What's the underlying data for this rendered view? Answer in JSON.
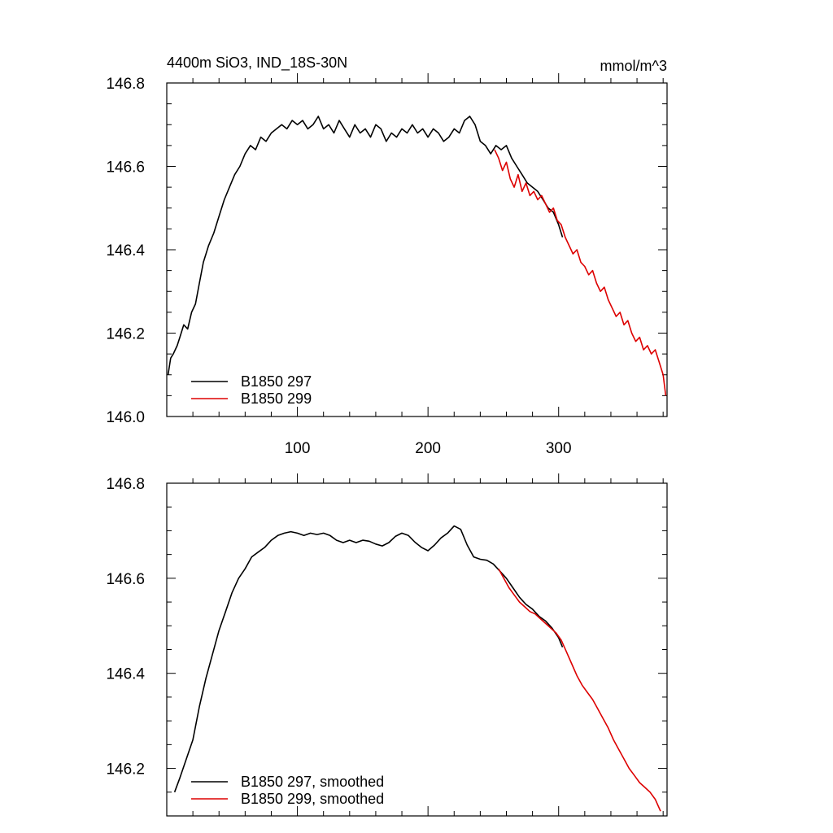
{
  "figure": {
    "title_left": "4400m SiO3, IND_18S-30N",
    "title_right": "mmol/m^3"
  },
  "chart_data": [
    {
      "type": "line",
      "panel": "top",
      "xlabel": "",
      "ylabel": "",
      "xlim": [
        0,
        383
      ],
      "ylim": [
        146.0,
        146.8
      ],
      "xticks": [
        100,
        200,
        300
      ],
      "xtick_labels": [
        "100",
        "200",
        "300"
      ],
      "yticks": [
        146.0,
        146.2,
        146.4,
        146.6,
        146.8
      ],
      "ytick_labels": [
        "146.0",
        "146.2",
        "146.4",
        "146.6",
        "146.8"
      ],
      "legend_position": "bottom-left",
      "series": [
        {
          "name": "B1850 297",
          "color": "#000000",
          "x": [
            1,
            3,
            5,
            8,
            10,
            13,
            16,
            19,
            22,
            25,
            28,
            32,
            36,
            40,
            44,
            48,
            52,
            56,
            60,
            64,
            68,
            72,
            76,
            80,
            84,
            88,
            92,
            96,
            100,
            104,
            108,
            112,
            116,
            120,
            124,
            128,
            132,
            136,
            140,
            144,
            148,
            152,
            156,
            160,
            164,
            168,
            172,
            176,
            180,
            184,
            188,
            192,
            196,
            200,
            204,
            208,
            212,
            216,
            220,
            224,
            228,
            232,
            236,
            240,
            244,
            248,
            252,
            256,
            260,
            264,
            268,
            272,
            276,
            280,
            284,
            288,
            292,
            296,
            300,
            303
          ],
          "values": [
            146.1,
            146.14,
            146.15,
            146.17,
            146.19,
            146.22,
            146.21,
            146.25,
            146.27,
            146.32,
            146.37,
            146.41,
            146.44,
            146.48,
            146.52,
            146.55,
            146.58,
            146.6,
            146.63,
            146.65,
            146.64,
            146.67,
            146.66,
            146.68,
            146.69,
            146.7,
            146.69,
            146.71,
            146.7,
            146.71,
            146.69,
            146.7,
            146.72,
            146.69,
            146.7,
            146.68,
            146.71,
            146.69,
            146.67,
            146.7,
            146.68,
            146.69,
            146.67,
            146.7,
            146.69,
            146.66,
            146.68,
            146.67,
            146.69,
            146.68,
            146.7,
            146.68,
            146.69,
            146.67,
            146.69,
            146.68,
            146.66,
            146.67,
            146.69,
            146.68,
            146.71,
            146.72,
            146.7,
            146.66,
            146.65,
            146.63,
            146.65,
            146.64,
            146.65,
            146.62,
            146.6,
            146.58,
            146.56,
            146.55,
            146.54,
            146.52,
            146.5,
            146.49,
            146.46,
            146.43
          ]
        },
        {
          "name": "B1850 299",
          "color": "#dd0000",
          "x": [
            251,
            254,
            257,
            260,
            263,
            266,
            269,
            272,
            275,
            278,
            281,
            284,
            287,
            290,
            293,
            296,
            299,
            302,
            305,
            308,
            311,
            314,
            317,
            320,
            323,
            326,
            329,
            332,
            335,
            338,
            341,
            344,
            347,
            350,
            353,
            356,
            359,
            362,
            365,
            368,
            371,
            374,
            377,
            380,
            382
          ],
          "values": [
            146.64,
            146.62,
            146.59,
            146.61,
            146.57,
            146.55,
            146.58,
            146.54,
            146.56,
            146.53,
            146.54,
            146.52,
            146.53,
            146.51,
            146.49,
            146.5,
            146.47,
            146.46,
            146.43,
            146.41,
            146.39,
            146.4,
            146.37,
            146.36,
            146.34,
            146.35,
            146.32,
            146.3,
            146.31,
            146.28,
            146.26,
            146.24,
            146.25,
            146.22,
            146.23,
            146.2,
            146.18,
            146.19,
            146.16,
            146.17,
            146.15,
            146.16,
            146.13,
            146.1,
            146.05
          ]
        }
      ]
    },
    {
      "type": "line",
      "panel": "bottom",
      "xlabel": "",
      "ylabel": "",
      "xlim": [
        0,
        383
      ],
      "ylim": [
        146.1,
        146.8
      ],
      "yticks": [
        146.2,
        146.4,
        146.6,
        146.8
      ],
      "ytick_labels": [
        "146.2",
        "146.4",
        "146.6",
        "146.8"
      ],
      "legend_position": "bottom-left",
      "series": [
        {
          "name": "B1850 297, smoothed",
          "color": "#000000",
          "x": [
            6,
            10,
            15,
            20,
            25,
            30,
            35,
            40,
            45,
            50,
            55,
            60,
            65,
            70,
            75,
            80,
            85,
            90,
            95,
            100,
            105,
            110,
            115,
            120,
            125,
            130,
            135,
            140,
            145,
            150,
            155,
            160,
            165,
            170,
            175,
            180,
            185,
            190,
            195,
            200,
            205,
            210,
            215,
            220,
            225,
            230,
            235,
            240,
            245,
            250,
            255,
            260,
            265,
            270,
            275,
            280,
            285,
            290,
            295,
            300,
            303
          ],
          "values": [
            146.15,
            146.18,
            146.22,
            146.26,
            146.33,
            146.39,
            146.44,
            146.49,
            146.53,
            146.57,
            146.6,
            146.62,
            146.645,
            146.655,
            146.665,
            146.68,
            146.69,
            146.695,
            146.698,
            146.695,
            146.69,
            146.695,
            146.692,
            146.695,
            146.69,
            146.68,
            146.675,
            146.68,
            146.675,
            146.68,
            146.678,
            146.672,
            146.668,
            146.675,
            146.688,
            146.695,
            146.69,
            146.676,
            146.665,
            146.658,
            146.67,
            146.685,
            146.695,
            146.71,
            146.703,
            146.67,
            146.645,
            146.64,
            146.638,
            146.63,
            146.615,
            146.6,
            146.58,
            146.56,
            146.545,
            146.535,
            146.52,
            146.51,
            146.495,
            146.475,
            146.455
          ]
        },
        {
          "name": "B1850 299, smoothed",
          "color": "#dd0000",
          "x": [
            254,
            258,
            262,
            266,
            270,
            274,
            278,
            282,
            286,
            290,
            294,
            298,
            302,
            306,
            310,
            314,
            318,
            322,
            326,
            330,
            334,
            338,
            342,
            346,
            350,
            354,
            358,
            362,
            366,
            370,
            374,
            378
          ],
          "values": [
            146.62,
            146.6,
            146.58,
            146.565,
            146.55,
            146.54,
            146.53,
            146.525,
            146.515,
            146.505,
            146.495,
            146.485,
            146.47,
            146.445,
            146.42,
            146.395,
            146.375,
            146.36,
            146.345,
            146.325,
            146.305,
            146.285,
            146.26,
            146.24,
            146.22,
            146.2,
            146.185,
            146.17,
            146.16,
            146.15,
            146.135,
            146.11
          ]
        }
      ]
    }
  ]
}
